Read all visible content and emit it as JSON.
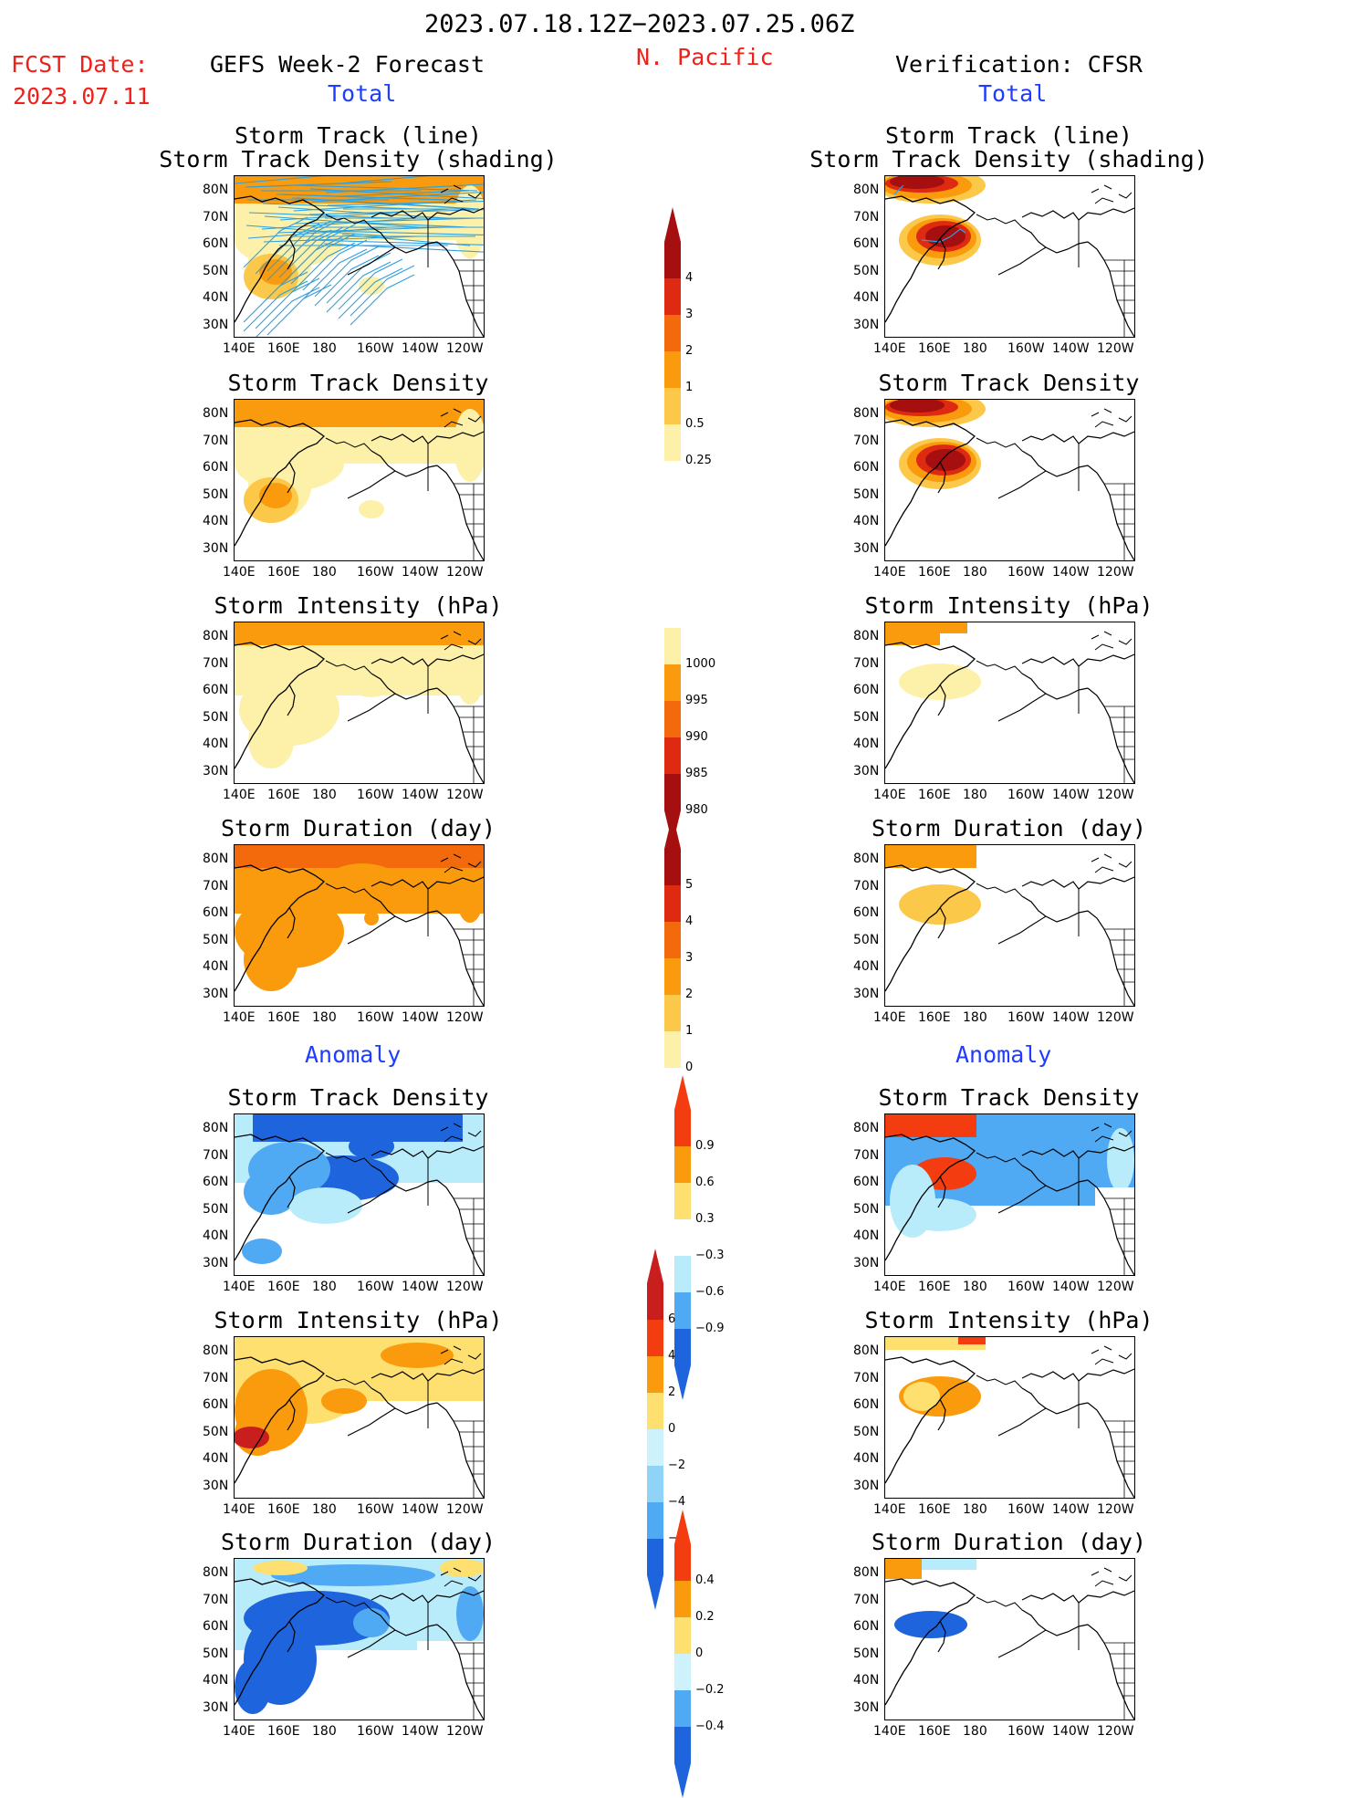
{
  "header": {
    "period": "2023.07.18.12Z−2023.07.25.06Z",
    "region": "N. Pacific",
    "fcst_label": "FCST Date:",
    "fcst_date": "2023.07.11",
    "left_title": "GEFS Week-2 Forecast",
    "right_title": "Verification: CFSR",
    "total_left": "Total",
    "total_right": "Total",
    "anom_left": "Anomaly",
    "anom_right": "Anomaly"
  },
  "panel_titles": {
    "track_line": "Storm Track (line)",
    "track_shading": "Storm Track Density (shading)",
    "density": "Storm Track Density",
    "intensity": "Storm Intensity (hPa)",
    "duration": "Storm Duration (day)"
  },
  "axes": {
    "lat_ticks": [
      "80N",
      "70N",
      "60N",
      "50N",
      "40N",
      "30N"
    ],
    "lon_ticks": [
      "140E",
      "160E",
      "180",
      "160W",
      "140W",
      "120W"
    ]
  },
  "colorbars": {
    "density": {
      "labels": [
        "4",
        "3",
        "2",
        "1",
        "0.5",
        "0.25"
      ],
      "colors": [
        "#a50f0f",
        "#dd2a10",
        "#f36a0c",
        "#f99b0d",
        "#fbc84a",
        "#fdf0a8"
      ]
    },
    "intensity": {
      "labels": [
        "1000",
        "995",
        "990",
        "985",
        "980"
      ],
      "colors": [
        "#fdf0a8",
        "#f99b0d",
        "#f36a0c",
        "#dd2a10",
        "#a50f0f"
      ]
    },
    "duration": {
      "labels": [
        "5",
        "4",
        "3",
        "2",
        "1",
        "0"
      ],
      "colors": [
        "#a50f0f",
        "#dd2a10",
        "#f36a0c",
        "#f99b0d",
        "#fbc84a",
        "#fdf0a8"
      ]
    },
    "anom_density": {
      "labels": [
        "0.9",
        "0.6",
        "0.3",
        "−0.3",
        "−0.6",
        "−0.9"
      ],
      "colors": [
        "#f33c10",
        "#f99b0d",
        "#fde070",
        "#ffffff",
        "#b9ecfb",
        "#4fa9f3",
        "#1e64dd"
      ]
    },
    "anom_intensity": {
      "labels": [
        "6",
        "4",
        "2",
        "0",
        "−2",
        "−4",
        "−6"
      ],
      "colors": [
        "#c81e1e",
        "#f33c10",
        "#f99b0d",
        "#fde070",
        "#cdf2fb",
        "#8fd3f7",
        "#4fa9f3",
        "#1e64dd"
      ]
    },
    "anom_duration": {
      "labels": [
        "0.4",
        "0.2",
        "0",
        "−0.2",
        "−0.4"
      ],
      "colors": [
        "#f33c10",
        "#f99b0d",
        "#fde070",
        "#cdf2fb",
        "#4fa9f3",
        "#1e64dd"
      ]
    }
  }
}
